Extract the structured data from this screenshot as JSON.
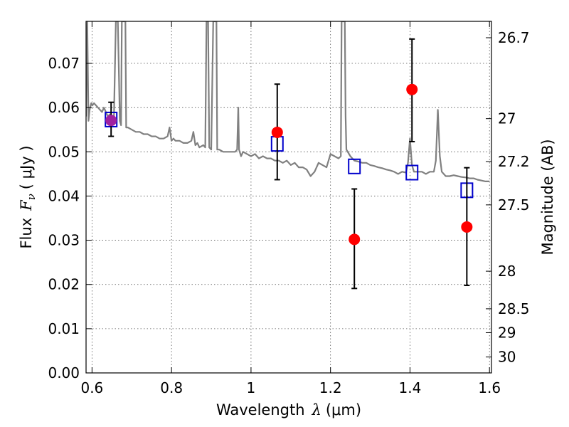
{
  "chart_data": {
    "type": "scatter",
    "xlabel_text": "Wavelength",
    "xlabel_sym": "λ",
    "xlabel_unit": "(μm)",
    "ylabel_text": "Flux",
    "ylabel_sym": "F",
    "ylabel_sub": "ν",
    "ylabel_unit": "( μJy )",
    "y2label": "Magnitude (AB)",
    "xlim": [
      0.585,
      1.605
    ],
    "ylim": [
      0.0,
      0.0795
    ],
    "x_ticks": [
      0.6,
      0.8,
      1.0,
      1.2,
      1.4,
      1.6
    ],
    "x_tick_labels": [
      "0.6",
      "0.8",
      "1",
      "1.2",
      "1.4",
      "1.6"
    ],
    "y_ticks": [
      0.0,
      0.01,
      0.02,
      0.03,
      0.04,
      0.05,
      0.06,
      0.07
    ],
    "y_tick_labels": [
      "0.00",
      "0.01",
      "0.02",
      "0.03",
      "0.04",
      "0.05",
      "0.06",
      "0.07"
    ],
    "mag_ticks": [
      {
        "flux": 0.0758,
        "label": "26.7"
      },
      {
        "flux": 0.0575,
        "label": "27"
      },
      {
        "flux": 0.0478,
        "label": "27.2"
      },
      {
        "flux": 0.038,
        "label": "27.5"
      },
      {
        "flux": 0.023,
        "label": "28"
      },
      {
        "flux": 0.0145,
        "label": "28.5"
      },
      {
        "flux": 0.0091,
        "label": "29"
      },
      {
        "flux": 0.0036,
        "label": "30"
      }
    ],
    "grid": true,
    "colors": {
      "observed": "#ff0000",
      "model_box": "#0000cc",
      "errorbar": "#000000",
      "template": "#808080",
      "overlap": "#a020a0"
    },
    "template_spectrum": {
      "x": [
        0.585,
        0.588,
        0.591,
        0.594,
        0.598,
        0.601,
        0.605,
        0.61,
        0.615,
        0.62,
        0.625,
        0.63,
        0.635,
        0.64,
        0.645,
        0.65,
        0.655,
        0.66,
        0.665,
        0.67,
        0.673,
        0.675,
        0.678,
        0.68,
        0.682,
        0.684,
        0.686,
        0.69,
        0.7,
        0.71,
        0.72,
        0.73,
        0.74,
        0.75,
        0.76,
        0.77,
        0.78,
        0.79,
        0.795,
        0.8,
        0.805,
        0.81,
        0.82,
        0.83,
        0.84,
        0.85,
        0.855,
        0.86,
        0.865,
        0.87,
        0.88,
        0.885,
        0.888,
        0.89,
        0.892,
        0.895,
        0.9,
        0.905,
        0.907,
        0.91,
        0.913,
        0.915,
        0.92,
        0.93,
        0.94,
        0.95,
        0.96,
        0.965,
        0.968,
        0.97,
        0.975,
        0.98,
        0.99,
        1.0,
        1.01,
        1.02,
        1.03,
        1.04,
        1.05,
        1.06,
        1.07,
        1.08,
        1.09,
        1.1,
        1.11,
        1.12,
        1.13,
        1.14,
        1.15,
        1.16,
        1.17,
        1.18,
        1.19,
        1.2,
        1.21,
        1.22,
        1.226,
        1.228,
        1.232,
        1.236,
        1.238,
        1.24,
        1.25,
        1.26,
        1.27,
        1.28,
        1.29,
        1.3,
        1.31,
        1.32,
        1.33,
        1.34,
        1.35,
        1.36,
        1.37,
        1.38,
        1.39,
        1.395,
        1.4,
        1.405,
        1.41,
        1.42,
        1.43,
        1.44,
        1.45,
        1.46,
        1.465,
        1.47,
        1.475,
        1.48,
        1.49,
        1.5,
        1.51,
        1.52,
        1.53,
        1.54,
        1.55,
        1.56,
        1.57,
        1.58,
        1.59,
        1.6
      ],
      "y": [
        0.058,
        0.0795,
        0.057,
        0.0595,
        0.061,
        0.0605,
        0.061,
        0.0605,
        0.06,
        0.0595,
        0.059,
        0.06,
        0.059,
        0.058,
        0.0585,
        0.058,
        0.057,
        0.0795,
        0.0795,
        0.057,
        0.056,
        0.0795,
        0.0795,
        0.0795,
        0.0795,
        0.0795,
        0.0555,
        0.0555,
        0.055,
        0.0545,
        0.0545,
        0.054,
        0.054,
        0.0535,
        0.0535,
        0.053,
        0.053,
        0.0535,
        0.0555,
        0.0525,
        0.053,
        0.0525,
        0.0525,
        0.052,
        0.052,
        0.0525,
        0.0545,
        0.0515,
        0.052,
        0.051,
        0.0515,
        0.051,
        0.0795,
        0.0795,
        0.0795,
        0.051,
        0.0505,
        0.0795,
        0.0795,
        0.0795,
        0.0795,
        0.0505,
        0.0505,
        0.05,
        0.05,
        0.05,
        0.05,
        0.0505,
        0.06,
        0.0505,
        0.049,
        0.05,
        0.0495,
        0.049,
        0.0495,
        0.0485,
        0.049,
        0.0485,
        0.0485,
        0.048,
        0.048,
        0.0475,
        0.048,
        0.047,
        0.0475,
        0.0465,
        0.0465,
        0.046,
        0.0445,
        0.0455,
        0.0475,
        0.047,
        0.0465,
        0.0495,
        0.049,
        0.0485,
        0.049,
        0.0795,
        0.0795,
        0.0795,
        0.058,
        0.0505,
        0.049,
        0.048,
        0.0478,
        0.0475,
        0.0475,
        0.047,
        0.0468,
        0.0465,
        0.0463,
        0.046,
        0.0458,
        0.0455,
        0.045,
        0.0455,
        0.0453,
        0.0475,
        0.053,
        0.047,
        0.0455,
        0.0455,
        0.0455,
        0.045,
        0.0455,
        0.0455,
        0.048,
        0.0595,
        0.049,
        0.0455,
        0.0445,
        0.0445,
        0.0447,
        0.0445,
        0.0443,
        0.0442,
        0.044,
        0.044,
        0.0437,
        0.0435,
        0.0433,
        0.0433
      ]
    },
    "observed_points": [
      {
        "x": 0.648,
        "y": 0.0571,
        "err_low": 0.0535,
        "err_high": 0.0612
      },
      {
        "x": 1.066,
        "y": 0.0544,
        "err_low": 0.0437,
        "err_high": 0.0653
      },
      {
        "x": 1.26,
        "y": 0.0302,
        "err_low": 0.0191,
        "err_high": 0.0416
      },
      {
        "x": 1.405,
        "y": 0.0641,
        "err_low": 0.0523,
        "err_high": 0.0755
      },
      {
        "x": 1.543,
        "y": 0.033,
        "err_low": 0.0198,
        "err_high": 0.0464
      }
    ],
    "model_points": [
      {
        "x": 0.648,
        "y": 0.0573
      },
      {
        "x": 1.066,
        "y": 0.0518
      },
      {
        "x": 1.26,
        "y": 0.0467
      },
      {
        "x": 1.405,
        "y": 0.0453
      },
      {
        "x": 1.543,
        "y": 0.0413
      }
    ]
  }
}
